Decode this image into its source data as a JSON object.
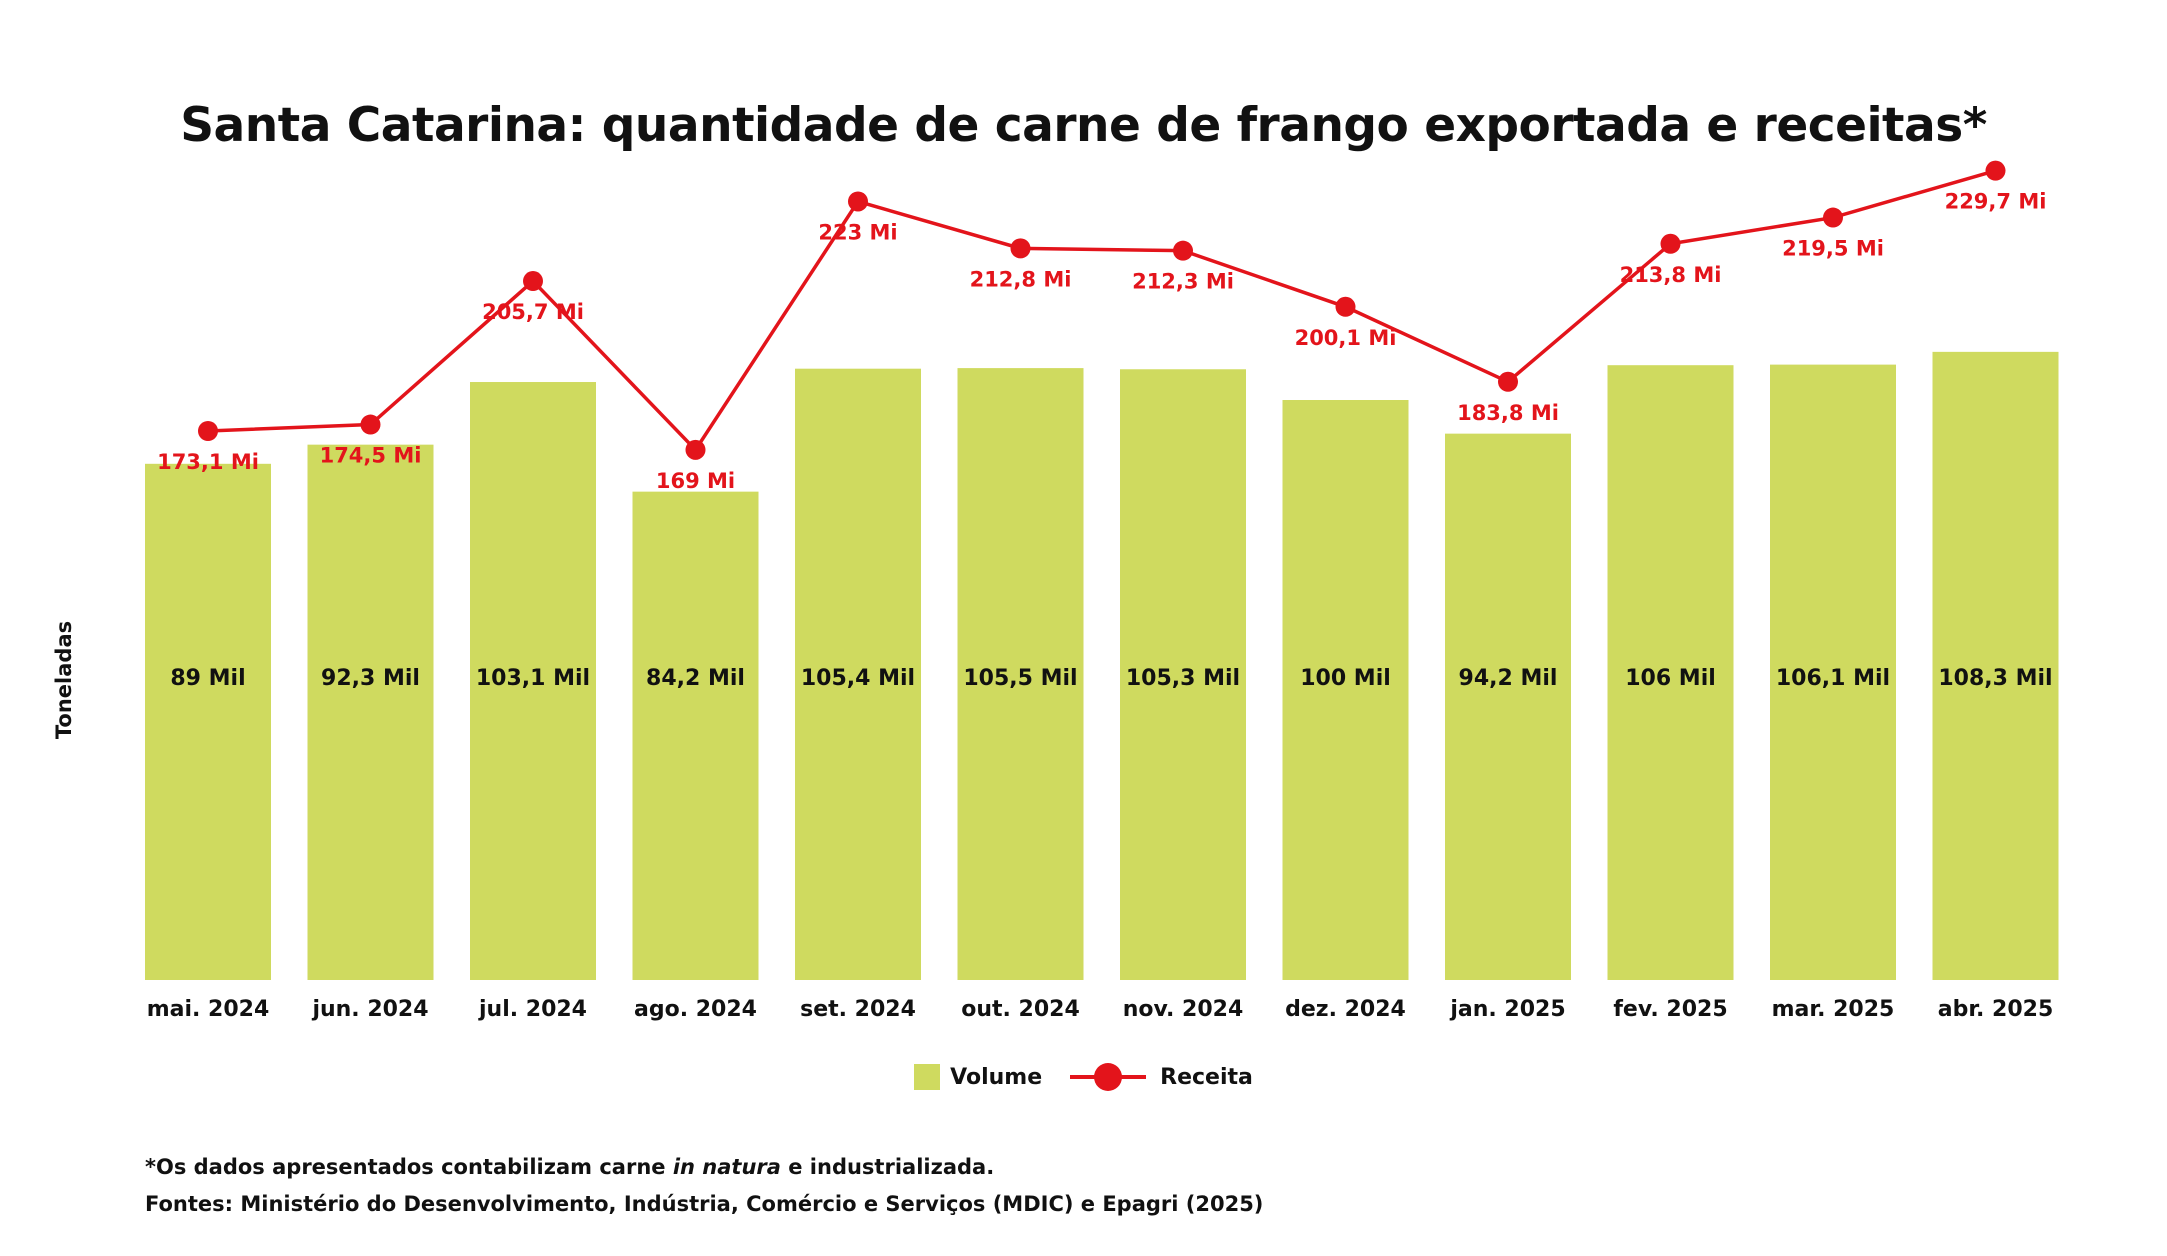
{
  "chart_data": {
    "type": "bar",
    "title": "Santa Catarina: quantidade de carne de frango exportada e receitas*",
    "ylabel": "Toneladas",
    "xlabel": "",
    "categories": [
      "mai. 2024",
      "jun. 2024",
      "jul. 2024",
      "ago. 2024",
      "set. 2024",
      "out. 2024",
      "nov. 2024",
      "dez. 2024",
      "jan. 2025",
      "fev. 2025",
      "mar. 2025",
      "abr. 2025"
    ],
    "series": [
      {
        "name": "Volume",
        "type": "bar",
        "values": [
          89,
          92.3,
          103.1,
          84.2,
          105.4,
          105.5,
          105.3,
          100,
          94.2,
          106,
          106.1,
          108.3
        ],
        "labels": [
          "89 Mil",
          "92,3 Mil",
          "103,1 Mil",
          "84,2 Mil",
          "105,4 Mil",
          "105,5 Mil",
          "105,3 Mil",
          "100 Mil",
          "94,2 Mil",
          "106 Mil",
          "106,1 Mil",
          "108,3 Mil"
        ],
        "color": "#cfda5f"
      },
      {
        "name": "Receita",
        "type": "line",
        "values": [
          173.1,
          174.5,
          205.7,
          169,
          223,
          212.8,
          212.3,
          200.1,
          183.8,
          213.8,
          219.5,
          229.7
        ],
        "labels": [
          "173,1 Mi",
          "174,5 Mi",
          "205,7 Mi",
          "169 Mi",
          "223 Mi",
          "212,8 Mi",
          "212,3 Mi",
          "200,1 Mi",
          "183,8 Mi",
          "213,8 Mi",
          "219,5 Mi",
          "229,7 Mi"
        ],
        "label_position": [
          "below",
          "below",
          "below",
          "below",
          "below",
          "below",
          "below",
          "below",
          "below",
          "below",
          "below",
          "below"
        ],
        "color": "#e3141b"
      }
    ],
    "legend": {
      "position": "bottom-center",
      "entries": [
        "Volume",
        "Receita"
      ]
    },
    "grid": false
  },
  "footnote": {
    "before": "*Os dados apresentados contabilizam carne ",
    "emphasis": "in natura",
    "after": " e industrializada."
  },
  "sources": "Fontes: Ministério do Desenvolvimento, Indústria, Comércio e Serviços (MDIC) e Epagri (2025)"
}
